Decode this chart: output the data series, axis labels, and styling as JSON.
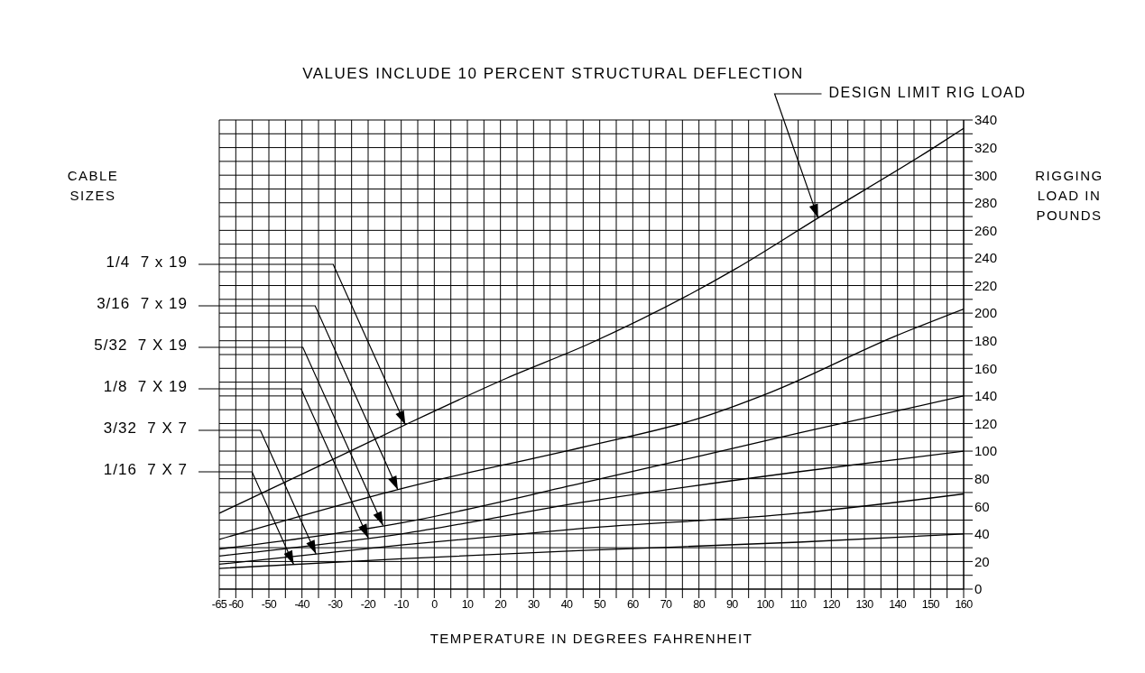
{
  "chart_data": {
    "type": "line",
    "title": "VALUES INCLUDE 10 PERCENT STRUCTURAL DEFLECTION",
    "xlabel": "TEMPERATURE IN DEGREES FAHRENHEIT",
    "ylabel": "RIGGING LOAD IN POUNDS",
    "legend_title": "CABLE SIZES",
    "legend": "left",
    "annotations": [
      {
        "text": "DESIGN LIMIT RIG LOAD",
        "x": 116,
        "y": 269
      }
    ],
    "series": [
      {
        "name": "1/4  7 x 19",
        "color": "#000000",
        "x": [
          -65,
          -35,
          -8,
          22,
          47,
          91,
          116,
          151,
          160
        ],
        "values": [
          55,
          89,
          120,
          153,
          178,
          232,
          269,
          320,
          334
        ]
      },
      {
        "name": "3/16  7 x 19",
        "color": "#000000",
        "x": [
          -65,
          -8,
          47,
          79,
          102,
          139,
          160
        ],
        "values": [
          36,
          74,
          104,
          123,
          143,
          183,
          203
        ]
      },
      {
        "name": "5/32  7 X 19",
        "color": "#000000",
        "x": [
          -65,
          -10,
          45,
          110,
          160
        ],
        "values": [
          29,
          48,
          77,
          113,
          140
        ]
      },
      {
        "name": "1/8  7 X 19",
        "color": "#000000",
        "x": [
          -65,
          -10,
          45,
          110,
          160
        ],
        "values": [
          24,
          40,
          63,
          85,
          100
        ]
      },
      {
        "name": "3/32  7 X 7",
        "color": "#000000",
        "x": [
          -65,
          -10,
          45,
          110,
          160
        ],
        "values": [
          18,
          32,
          44,
          55,
          69
        ]
      },
      {
        "name": "1/16  7 X 7",
        "color": "#000000",
        "x": [
          -65,
          -10,
          45,
          110,
          160
        ],
        "values": [
          15,
          22,
          28,
          34,
          40
        ]
      }
    ],
    "xlim": [
      -65,
      160
    ],
    "xticks": [
      -65,
      -60,
      {
        "value": -55,
        "label": null
      },
      -50,
      {
        "value": -45,
        "label": null
      },
      -40,
      {
        "value": -35,
        "label": null
      },
      -30,
      {
        "value": -25,
        "label": null
      },
      -20,
      {
        "value": -15,
        "label": null
      },
      -10,
      {
        "value": -5,
        "label": null
      },
      0,
      {
        "value": 5,
        "label": null
      },
      10,
      {
        "value": 15,
        "label": null
      },
      20,
      {
        "value": 25,
        "label": null
      },
      30,
      {
        "value": 35,
        "label": null
      },
      40,
      {
        "value": 45,
        "label": null
      },
      50,
      {
        "value": 55,
        "label": null
      },
      60,
      {
        "value": 65,
        "label": null
      },
      70,
      {
        "value": 75,
        "label": null
      },
      80,
      {
        "value": 85,
        "label": null
      },
      90,
      {
        "value": 95,
        "label": null
      },
      100,
      {
        "value": 105,
        "label": null
      },
      110,
      {
        "value": 115,
        "label": null
      },
      120,
      {
        "value": 125,
        "label": null
      },
      130,
      {
        "value": 135,
        "label": null
      },
      140,
      {
        "value": 145,
        "label": null
      },
      150,
      {
        "value": 155,
        "label": null
      },
      160
    ],
    "ylim": [
      0,
      340
    ],
    "yticks": [
      0,
      {
        "value": 10,
        "label": null
      },
      20,
      {
        "value": 30,
        "label": null
      },
      40,
      {
        "value": 50,
        "label": null
      },
      60,
      {
        "value": 70,
        "label": null
      },
      80,
      {
        "value": 90,
        "label": null
      },
      100,
      {
        "value": 110,
        "label": null
      },
      120,
      {
        "value": 130,
        "label": null
      },
      140,
      {
        "value": 150,
        "label": null
      },
      160,
      {
        "value": 170,
        "label": null
      },
      180,
      {
        "value": 190,
        "label": null
      },
      200,
      {
        "value": 210,
        "label": null
      },
      220,
      {
        "value": 230,
        "label": null
      },
      240,
      {
        "value": 250,
        "label": null
      },
      260,
      {
        "value": 270,
        "label": null
      },
      280,
      {
        "value": 290,
        "label": null
      },
      300,
      {
        "value": 310,
        "label": null
      },
      320,
      {
        "value": 330,
        "label": null
      },
      340
    ],
    "grid": true,
    "line_style": "solid"
  }
}
